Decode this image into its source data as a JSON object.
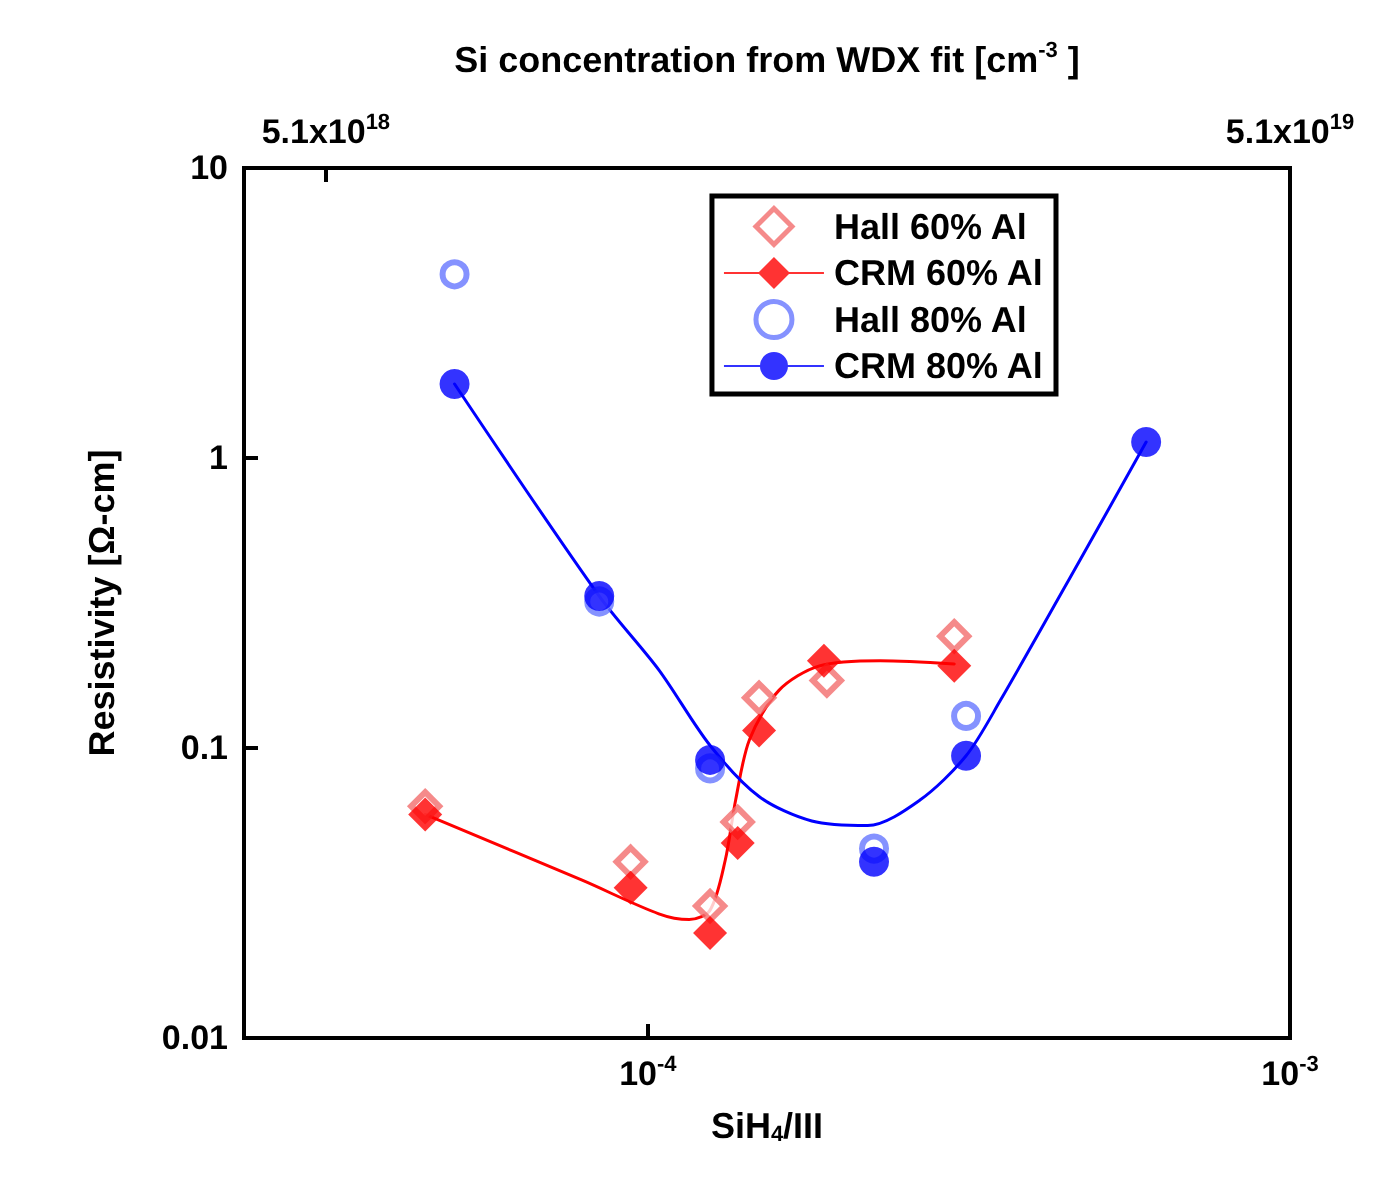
{
  "chart_data": {
    "type": "scatter",
    "xlabel": "SiH$_{4}$/III",
    "ylabel": "Resistivity [Ω-cm]",
    "x2label": "Si concentration from WDX fit [cm$^{-3}$ ]",
    "log": "xy",
    "xlim": [
      2.35e-05,
      0.001
    ],
    "xticks": [
      {
        "value": 0.0001,
        "label": "10$^{-4}$"
      },
      {
        "value": 0.001,
        "label": "10$^{-3}$"
      }
    ],
    "x2lim": [
      1.2e+18,
      5.1e+19
    ],
    "x2ticks": [
      {
        "value": 5.1e+18,
        "label": "5.1x10$^{18}$"
      },
      {
        "value": 5.1e+19,
        "label": "5.1x10$^{19}$"
      }
    ],
    "ylim": [
      0.01,
      10
    ],
    "yticks": [
      0.01,
      0.1,
      1,
      10
    ],
    "grid": false,
    "legend": "top right",
    "series": [
      {
        "name": "Hall 60% Al",
        "marker": "diamond",
        "color": "#f26d6d",
        "x": [
          4.5e-05,
          9.4e-05,
          0.000125,
          0.000138,
          0.000149,
          0.00019,
          0.0003
        ],
        "values": [
          0.063,
          0.0405,
          0.0285,
          0.0556,
          0.149,
          0.171,
          0.243
        ]
      },
      {
        "name": "CRM 60% Al",
        "marker": "diamond",
        "color": "#ff0000",
        "x": [
          4.5e-05,
          9.4e-05,
          0.000125,
          0.000138,
          0.000149,
          0.000188,
          0.0003
        ],
        "values": [
          0.059,
          0.033,
          0.023,
          0.047,
          0.115,
          0.2,
          0.192
        ]
      },
      {
        "name": "Hall 80% Al",
        "marker": "circle",
        "color": "#6677ff",
        "x": [
          5e-05,
          8.4e-05,
          0.000125,
          0.000225,
          0.000313
        ],
        "values": [
          4.3,
          0.32,
          0.085,
          0.045,
          0.129
        ]
      },
      {
        "name": "CRM 80% Al",
        "marker": "circle",
        "color": "#0000ff",
        "x": [
          5e-05,
          8.4e-05,
          0.000125,
          0.000225,
          0.000313,
          0.000597
        ],
        "values": [
          1.8,
          0.334,
          0.091,
          0.0405,
          0.094,
          1.135
        ]
      },
      {
        "type": "line",
        "marker": "none",
        "color": "#ff0000",
        "x": [
          4.5e-05,
          7.9e-05,
          0.000104,
          0.000116,
          0.000125,
          0.000132,
          0.000137,
          0.000144,
          0.00016,
          0.000185,
          0.00023,
          0.0003
        ],
        "values": [
          0.059,
          0.035,
          0.0268,
          0.0256,
          0.0276,
          0.0411,
          0.0662,
          0.107,
          0.158,
          0.192,
          0.2,
          0.195
        ]
      },
      {
        "type": "line",
        "marker": "none",
        "color": "#0000ff",
        "x": [
          5e-05,
          8.4e-05,
          0.000104,
          0.000125,
          0.000149,
          0.00018,
          0.00022,
          0.000265,
          0.000313,
          0.000354,
          0.000471,
          0.000597
        ],
        "values": [
          1.8,
          0.334,
          0.186,
          0.102,
          0.068,
          0.056,
          0.054,
          0.066,
          0.094,
          0.146,
          0.445,
          1.135
        ]
      }
    ]
  }
}
